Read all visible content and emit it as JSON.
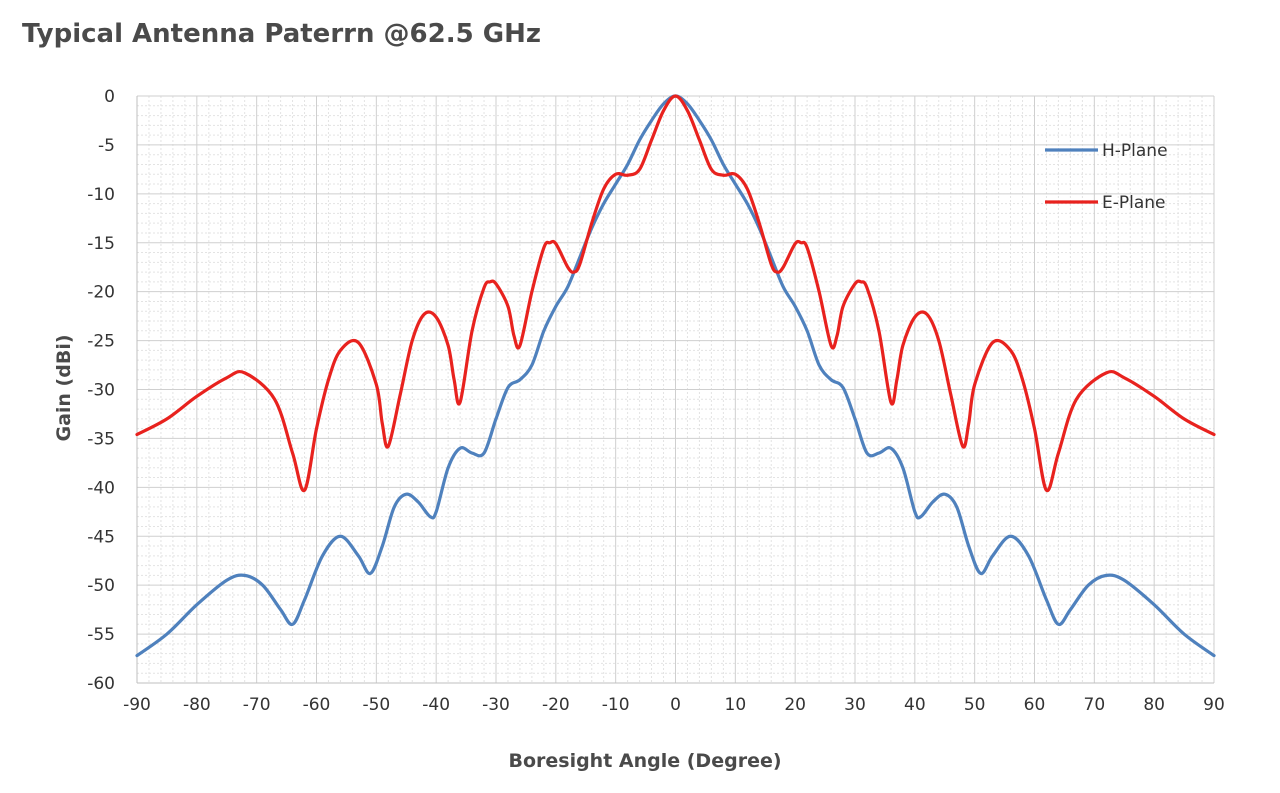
{
  "chart_data": {
    "type": "line",
    "title": "Typical Antenna Paterrn @62.5 GHz",
    "xlabel": "Boresight Angle (Degree)",
    "ylabel": "Gain (dBi)",
    "xlim": [
      -90,
      90
    ],
    "ylim": [
      -60,
      0
    ],
    "xticks": [
      -90,
      -80,
      -70,
      -60,
      -50,
      -40,
      -30,
      -20,
      -10,
      0,
      10,
      20,
      30,
      40,
      50,
      60,
      70,
      80,
      90
    ],
    "yticks": [
      0,
      -5,
      -10,
      -15,
      -20,
      -25,
      -30,
      -35,
      -40,
      -45,
      -50,
      -55,
      -60
    ],
    "xtick_labels": [
      "-90",
      "-80",
      "-70",
      "-60",
      "-50",
      "-40",
      "-30",
      "-20",
      "-10",
      "0",
      "10",
      "20",
      "30",
      "40",
      "50",
      "60",
      "70",
      "80",
      "90"
    ],
    "ytick_labels": [
      "0",
      "-5",
      "-10",
      "-15",
      "-20",
      "-25",
      "-30",
      "-35",
      "-40",
      "-45",
      "-50",
      "-55",
      "-60"
    ],
    "grid": true,
    "legend_position": "top-right",
    "symmetric": true,
    "series": [
      {
        "name": "H-Plane",
        "color": "#4f81bd",
        "x": [
          0,
          2,
          4,
          6,
          8,
          10,
          12,
          14,
          16,
          18,
          20,
          22,
          24,
          26,
          28,
          30,
          32,
          34,
          36,
          38,
          40,
          41,
          43,
          45,
          47,
          49,
          51,
          53,
          56,
          59,
          62,
          64,
          66,
          69,
          72,
          75,
          80,
          85,
          90
        ],
        "y": [
          0,
          -0.8,
          -2.5,
          -4.5,
          -7,
          -9,
          -11,
          -13.5,
          -16.5,
          -19.5,
          -21.5,
          -24,
          -27.5,
          -29,
          -29.8,
          -33,
          -36.5,
          -36.5,
          -36,
          -38,
          -42.5,
          -43,
          -41.5,
          -40.7,
          -42,
          -46,
          -48.8,
          -47,
          -45,
          -47,
          -51.5,
          -54,
          -52.5,
          -50,
          -49,
          -49.5,
          -52,
          -55,
          -57.2
        ]
      },
      {
        "name": "E-Plane",
        "color": "#e8221e",
        "x": [
          0,
          2,
          4,
          6,
          8,
          10,
          12,
          14,
          16,
          17,
          18,
          20,
          21,
          22,
          24,
          26,
          27,
          28,
          30,
          31,
          32,
          34,
          36,
          37,
          38,
          40,
          42,
          44,
          46,
          48,
          49,
          50,
          53,
          56,
          58,
          60,
          62,
          64,
          67,
          72,
          75,
          80,
          85,
          90
        ],
        "y": [
          0,
          -1.5,
          -4.5,
          -7.5,
          -8.1,
          -8,
          -9.5,
          -13,
          -17.2,
          -18,
          -17.5,
          -15.1,
          -15,
          -15.5,
          -20,
          -25.5,
          -24.5,
          -21.5,
          -19.2,
          -19,
          -19.6,
          -24,
          -31.3,
          -29,
          -25.5,
          -22.6,
          -22.3,
          -25,
          -30.5,
          -35.8,
          -33.5,
          -29.5,
          -25.2,
          -26,
          -29,
          -34,
          -40.3,
          -36.5,
          -31,
          -28.3,
          -28.8,
          -30.7,
          -33,
          -34.6
        ]
      }
    ]
  }
}
